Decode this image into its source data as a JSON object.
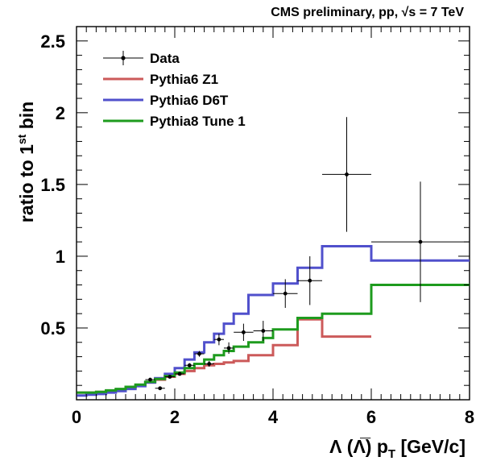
{
  "header": "CMS preliminary, pp, √s = 7 TeV",
  "chart_data": {
    "type": "line",
    "xlabel": "Λ (Λ̅) p_T [GeV/c]",
    "ylabel": "ratio to 1st bin",
    "xlim": [
      0,
      8
    ],
    "ylim": [
      0,
      2.6
    ],
    "x_ticks": [
      "0",
      "2",
      "4",
      "6",
      "8"
    ],
    "y_ticks": [
      "0.5",
      "1",
      "1.5",
      "2",
      "2.5"
    ],
    "x_tick_values": [
      0,
      2,
      4,
      6,
      8
    ],
    "y_tick_values": [
      0.5,
      1,
      1.5,
      2,
      2.5
    ],
    "legend_position": "top-left",
    "series": [
      {
        "name": "Data",
        "kind": "points",
        "color": "#000000",
        "points": [
          {
            "x": 1.5,
            "y": 0.14,
            "xerr": 0.1,
            "yerr": 0.01
          },
          {
            "x": 1.7,
            "y": 0.08,
            "xerr": 0.1,
            "yerr": 0.01
          },
          {
            "x": 1.9,
            "y": 0.16,
            "xerr": 0.1,
            "yerr": 0.01
          },
          {
            "x": 2.1,
            "y": 0.18,
            "xerr": 0.1,
            "yerr": 0.01
          },
          {
            "x": 2.3,
            "y": 0.24,
            "xerr": 0.1,
            "yerr": 0.015
          },
          {
            "x": 2.5,
            "y": 0.32,
            "xerr": 0.1,
            "yerr": 0.02
          },
          {
            "x": 2.7,
            "y": 0.25,
            "xerr": 0.1,
            "yerr": 0.02
          },
          {
            "x": 2.9,
            "y": 0.42,
            "xerr": 0.1,
            "yerr": 0.04
          },
          {
            "x": 3.1,
            "y": 0.36,
            "xerr": 0.1,
            "yerr": 0.04
          },
          {
            "x": 3.4,
            "y": 0.47,
            "xerr": 0.2,
            "yerr": 0.06
          },
          {
            "x": 3.8,
            "y": 0.48,
            "xerr": 0.2,
            "yerr": 0.07
          },
          {
            "x": 4.25,
            "y": 0.74,
            "xerr": 0.25,
            "yerr": 0.1
          },
          {
            "x": 4.75,
            "y": 0.83,
            "xerr": 0.25,
            "yerr": 0.17
          },
          {
            "x": 5.5,
            "y": 1.57,
            "xerr": 0.5,
            "yerr": 0.4
          },
          {
            "x": 7.0,
            "y": 1.1,
            "xerr": 1.0,
            "yerr": 0.42
          }
        ]
      },
      {
        "name": "Pythia6 Z1",
        "kind": "step",
        "color": "#cc5a5a",
        "x": [
          0,
          0.2,
          0.4,
          0.6,
          0.8,
          1.0,
          1.2,
          1.4,
          1.6,
          1.8,
          2.0,
          2.2,
          2.4,
          2.6,
          2.8,
          3.0,
          3.2,
          3.5,
          4.0,
          4.5,
          5.0,
          6.0
        ],
        "y": [
          0.05,
          0.05,
          0.055,
          0.06,
          0.07,
          0.085,
          0.1,
          0.12,
          0.14,
          0.16,
          0.18,
          0.2,
          0.22,
          0.24,
          0.25,
          0.26,
          0.27,
          0.31,
          0.38,
          0.56,
          0.44,
          0.44
        ],
        "x_end": 6.0
      },
      {
        "name": "Pythia6 D6T",
        "kind": "step",
        "color": "#5050cc",
        "x": [
          0,
          0.2,
          0.4,
          0.6,
          0.8,
          1.0,
          1.2,
          1.4,
          1.6,
          1.8,
          2.0,
          2.2,
          2.4,
          2.6,
          2.8,
          3.0,
          3.2,
          3.5,
          4.0,
          4.5,
          5.0,
          6.0
        ],
        "y": [
          0.03,
          0.035,
          0.04,
          0.05,
          0.06,
          0.075,
          0.095,
          0.12,
          0.15,
          0.18,
          0.22,
          0.28,
          0.33,
          0.4,
          0.46,
          0.53,
          0.6,
          0.73,
          0.81,
          0.92,
          1.07,
          0.97
        ],
        "x_end": 8.0
      },
      {
        "name": "Pythia8 Tune 1",
        "kind": "step",
        "color": "#1e9b1e",
        "x": [
          0,
          0.2,
          0.4,
          0.6,
          0.8,
          1.0,
          1.2,
          1.4,
          1.6,
          1.8,
          2.0,
          2.2,
          2.4,
          2.6,
          2.8,
          3.0,
          3.2,
          3.5,
          3.8,
          4.0,
          4.5,
          5.0,
          6.0
        ],
        "y": [
          0.05,
          0.05,
          0.055,
          0.065,
          0.075,
          0.09,
          0.105,
          0.125,
          0.145,
          0.165,
          0.19,
          0.22,
          0.25,
          0.28,
          0.31,
          0.34,
          0.37,
          0.4,
          0.43,
          0.49,
          0.57,
          0.6,
          0.8
        ],
        "x_end": 8.0
      }
    ]
  }
}
